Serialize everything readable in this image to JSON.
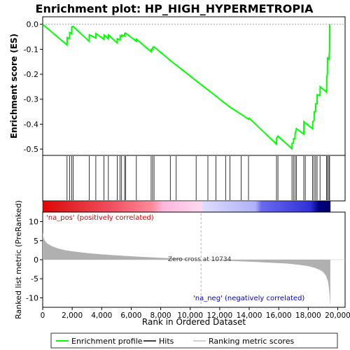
{
  "chart_data": {
    "type": "line",
    "title": "Enrichment plot: HP_HIGH_HYPERMETROPIA",
    "xlabel": "Rank in Ordered Dataset",
    "ylabel_top": "Enrichment score (ES)",
    "ylabel_bottom": "Ranked list metric (PreRanked)",
    "xlim": [
      0,
      20500
    ],
    "x_ticks": [
      0,
      2000,
      4000,
      6000,
      8000,
      10000,
      12000,
      14000,
      16000,
      18000,
      20000
    ],
    "x_tick_labels": [
      "0",
      "2,000",
      "4,000",
      "6,000",
      "8,000",
      "10,000",
      "12,000",
      "14,000",
      "16,000",
      "18,000",
      "20,000"
    ],
    "es_ylim": [
      -0.525,
      0.03
    ],
    "es_ticks": [
      0.0,
      -0.1,
      -0.2,
      -0.3,
      -0.4,
      -0.5
    ],
    "es_tick_labels": [
      "0.0",
      "-0.1",
      "-0.2",
      "-0.3",
      "-0.4",
      "-0.5"
    ],
    "metric_ylim": [
      -12.5,
      12.5
    ],
    "metric_ticks": [
      10,
      5,
      0,
      -5,
      -10
    ],
    "metric_tick_labels": [
      "10",
      "5",
      "0",
      "-5",
      "-10"
    ],
    "total_rank": 19500,
    "zero_cross": 10734,
    "zero_cross_label": "Zero cross at 10734",
    "pos_label": "'na_pos' (positively correlated)",
    "neg_label": "'na_neg' (negatively correlated)",
    "legend": [
      {
        "label": "Enrichment profile",
        "color": "#00ff00"
      },
      {
        "label": "Hits",
        "color": "#000000"
      },
      {
        "label": "Ranking metric scores",
        "color": "#c0c0c0"
      }
    ],
    "colors": {
      "profile": "#00ff00",
      "hits": "#000000",
      "metric_fill": "#b0b0b0",
      "pos": "#dd0000",
      "neg": "#0000cc",
      "zero_line": "#999999"
    },
    "hits": [
      1650,
      1820,
      1960,
      2060,
      3150,
      3600,
      4150,
      4450,
      5050,
      5250,
      5350,
      5550,
      5620,
      6350,
      7350,
      7450,
      7550,
      8650,
      9050,
      10400,
      11200,
      11750,
      12400,
      12700,
      13450,
      13950,
      15850,
      15950,
      16900,
      17000,
      17100,
      17200,
      17700,
      17800,
      18300,
      18400,
      18500,
      18600,
      18800,
      19250,
      19300,
      19400,
      19450
    ],
    "es_points": [
      [
        0,
        0.0
      ],
      [
        1650,
        -0.083
      ],
      [
        1660,
        -0.053
      ],
      [
        1820,
        -0.058
      ],
      [
        1830,
        -0.033
      ],
      [
        1960,
        -0.037
      ],
      [
        1970,
        -0.01
      ],
      [
        2060,
        -0.008
      ],
      [
        3150,
        -0.068
      ],
      [
        3160,
        -0.042
      ],
      [
        3600,
        -0.055
      ],
      [
        3610,
        -0.037
      ],
      [
        4150,
        -0.06
      ],
      [
        4160,
        -0.043
      ],
      [
        4450,
        -0.058
      ],
      [
        4460,
        -0.043
      ],
      [
        5050,
        -0.075
      ],
      [
        5060,
        -0.058
      ],
      [
        5250,
        -0.063
      ],
      [
        5260,
        -0.046
      ],
      [
        5350,
        -0.05
      ],
      [
        5360,
        -0.043
      ],
      [
        5550,
        -0.048
      ],
      [
        5560,
        -0.037
      ],
      [
        5620,
        -0.035
      ],
      [
        6350,
        -0.068
      ],
      [
        6360,
        -0.06
      ],
      [
        7350,
        -0.11
      ],
      [
        7360,
        -0.1
      ],
      [
        7450,
        -0.1
      ],
      [
        7460,
        -0.093
      ],
      [
        7550,
        -0.09
      ],
      [
        8650,
        -0.145
      ],
      [
        9050,
        -0.163
      ],
      [
        10400,
        -0.226
      ],
      [
        11200,
        -0.262
      ],
      [
        11750,
        -0.288
      ],
      [
        12400,
        -0.318
      ],
      [
        12700,
        -0.332
      ],
      [
        13450,
        -0.36
      ],
      [
        13950,
        -0.38
      ],
      [
        14000,
        -0.376
      ],
      [
        15850,
        -0.48
      ],
      [
        15860,
        -0.455
      ],
      [
        15950,
        -0.448
      ],
      [
        16900,
        -0.498
      ],
      [
        16910,
        -0.476
      ],
      [
        17000,
        -0.476
      ],
      [
        17010,
        -0.458
      ],
      [
        17100,
        -0.458
      ],
      [
        17110,
        -0.437
      ],
      [
        17200,
        -0.418
      ],
      [
        17700,
        -0.44
      ],
      [
        17710,
        -0.39
      ],
      [
        17800,
        -0.395
      ],
      [
        18300,
        -0.418
      ],
      [
        18310,
        -0.39
      ],
      [
        18400,
        -0.385
      ],
      [
        18410,
        -0.35
      ],
      [
        18500,
        -0.35
      ],
      [
        18510,
        -0.318
      ],
      [
        18600,
        -0.318
      ],
      [
        18610,
        -0.282
      ],
      [
        18800,
        -0.285
      ],
      [
        18810,
        -0.25
      ],
      [
        19250,
        -0.272
      ],
      [
        19260,
        -0.21
      ],
      [
        19300,
        -0.2
      ],
      [
        19310,
        -0.135
      ],
      [
        19400,
        -0.14
      ],
      [
        19450,
        -0.1
      ],
      [
        19460,
        0.0
      ]
    ],
    "metric_curve": [
      [
        0,
        7.2
      ],
      [
        50,
        5.8
      ],
      [
        150,
        5.0
      ],
      [
        300,
        4.3
      ],
      [
        600,
        3.6
      ],
      [
        1000,
        3.0
      ],
      [
        1500,
        2.5
      ],
      [
        2000,
        2.2
      ],
      [
        3000,
        1.75
      ],
      [
        4000,
        1.4
      ],
      [
        5000,
        1.15
      ],
      [
        6000,
        0.9
      ],
      [
        7000,
        0.7
      ],
      [
        8000,
        0.5
      ],
      [
        9000,
        0.35
      ],
      [
        10000,
        0.15
      ],
      [
        10734,
        0.0
      ],
      [
        11500,
        -0.15
      ],
      [
        12500,
        -0.3
      ],
      [
        13500,
        -0.45
      ],
      [
        14500,
        -0.6
      ],
      [
        15500,
        -0.8
      ],
      [
        16500,
        -1.0
      ],
      [
        17000,
        -1.2
      ],
      [
        17500,
        -1.4
      ],
      [
        18000,
        -1.7
      ],
      [
        18500,
        -2.2
      ],
      [
        18800,
        -2.7
      ],
      [
        19000,
        -3.2
      ],
      [
        19200,
        -4.2
      ],
      [
        19350,
        -5.8
      ],
      [
        19430,
        -8.5
      ],
      [
        19480,
        -11.5
      ],
      [
        19500,
        -12.0
      ]
    ],
    "gradient_stops": [
      {
        "pos": 0.0,
        "color": "#ee0000"
      },
      {
        "pos": 0.03,
        "color": "#dd1111"
      },
      {
        "pos": 0.24,
        "color": "#f05060"
      },
      {
        "pos": 0.38,
        "color": "#ff8a9a"
      },
      {
        "pos": 0.42,
        "color": "#ffb8e0"
      },
      {
        "pos": 0.55,
        "color": "#ffd8f0"
      },
      {
        "pos": 0.56,
        "color": "#dcdcff"
      },
      {
        "pos": 0.74,
        "color": "#b0b0f8"
      },
      {
        "pos": 0.76,
        "color": "#6a6af0"
      },
      {
        "pos": 0.93,
        "color": "#3030d8"
      },
      {
        "pos": 0.96,
        "color": "#000080"
      },
      {
        "pos": 1.0,
        "color": "#000066"
      }
    ]
  }
}
